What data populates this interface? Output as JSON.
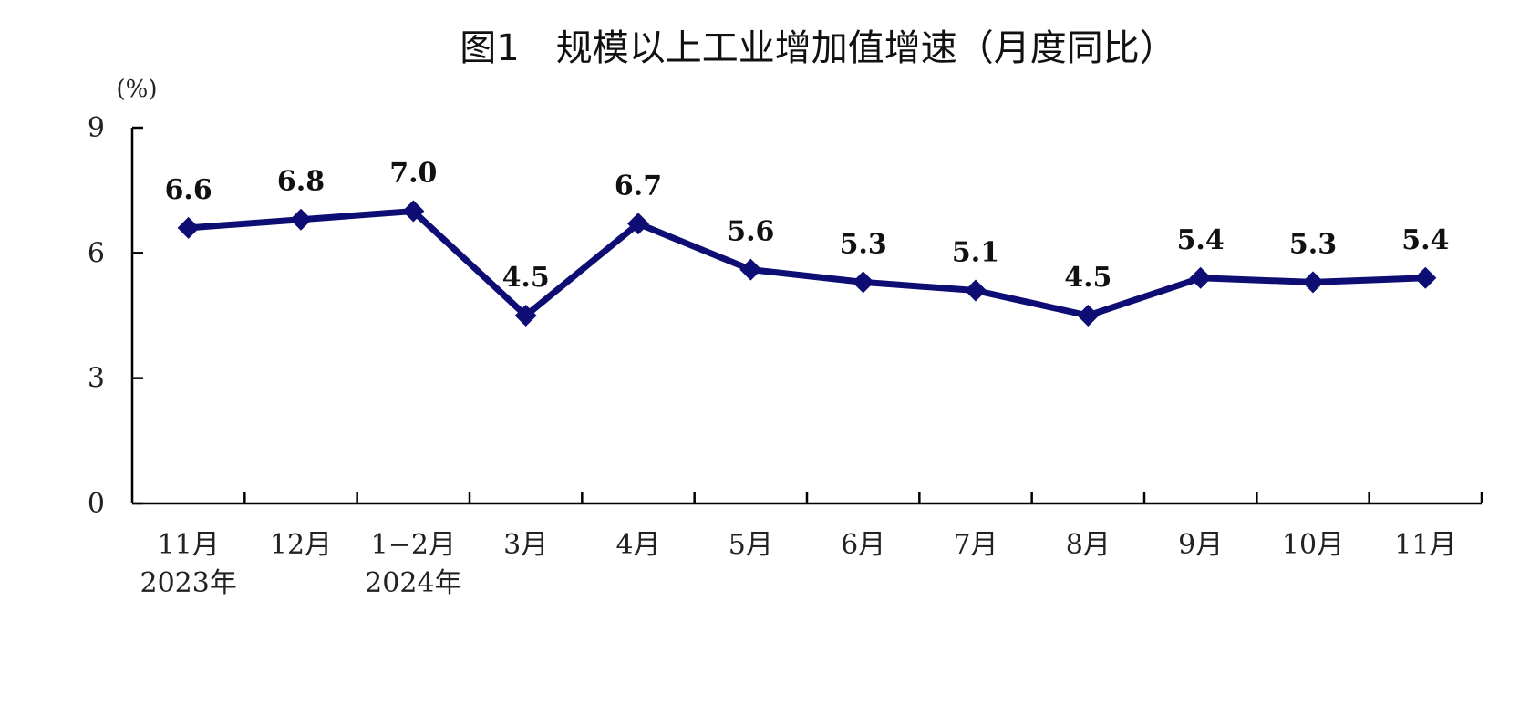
{
  "chart_data": {
    "type": "line",
    "title": "图1　规模以上工业增加值增速（月度同比）",
    "ylabel": "(%)",
    "xlabel": "",
    "ylim": [
      0,
      9
    ],
    "yticks": [
      "0",
      "3",
      "6",
      "9"
    ],
    "categories": [
      [
        "11月",
        "2023年"
      ],
      [
        "12月"
      ],
      [
        "1−2月",
        "2024年"
      ],
      [
        "3月"
      ],
      [
        "4月"
      ],
      [
        "5月"
      ],
      [
        "6月"
      ],
      [
        "7月"
      ],
      [
        "8月"
      ],
      [
        "9月"
      ],
      [
        "10月"
      ],
      [
        "11月"
      ]
    ],
    "series": [
      {
        "values": [
          6.6,
          6.8,
          7.0,
          4.5,
          6.7,
          5.6,
          5.3,
          5.1,
          4.5,
          5.4,
          5.3,
          5.4
        ],
        "data_labels": [
          "6.6",
          "6.8",
          "7.0",
          "4.5",
          "6.7",
          "5.6",
          "5.3",
          "5.1",
          "4.5",
          "5.4",
          "5.3",
          "5.4"
        ],
        "color": "#0d0d73",
        "marker": "diamond"
      }
    ],
    "grid": false,
    "legend": "none"
  }
}
